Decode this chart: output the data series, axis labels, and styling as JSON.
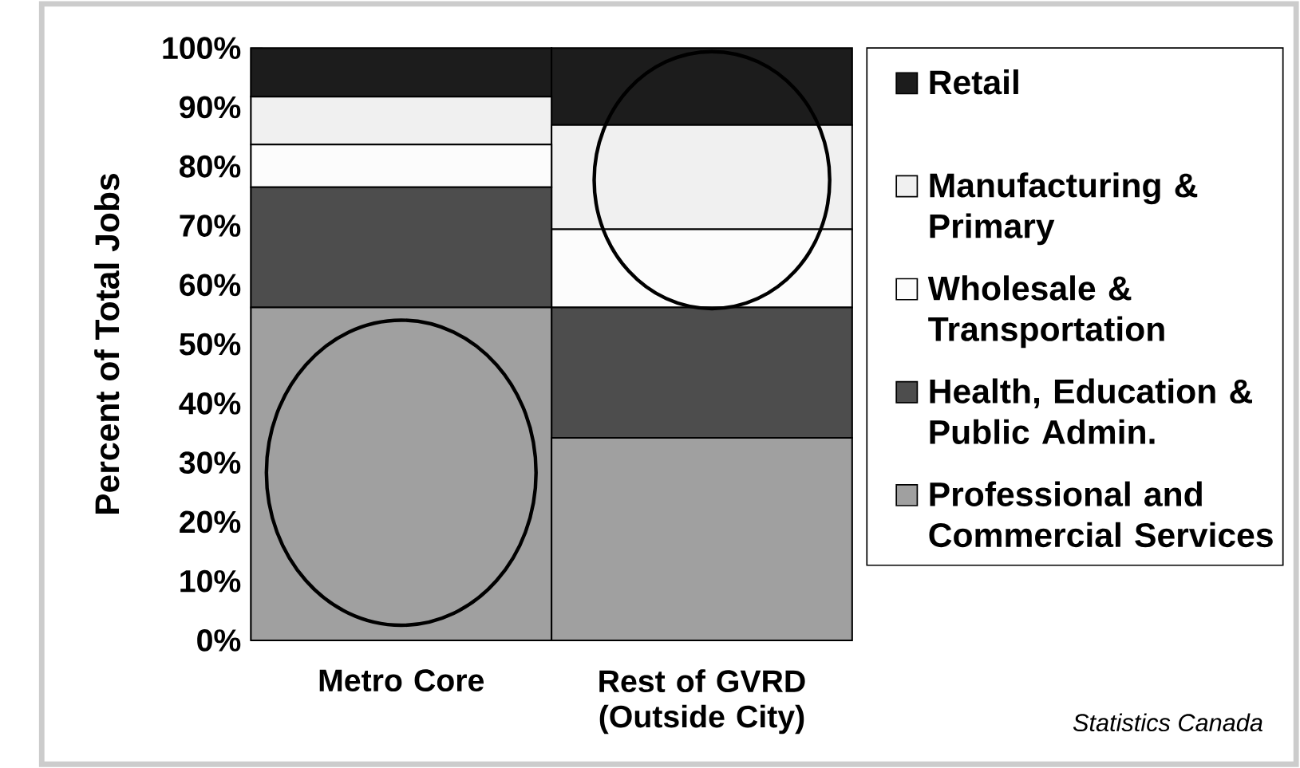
{
  "chart_data": {
    "type": "bar",
    "stacked": true,
    "ylabel": "Percent of Total Jobs",
    "categories": [
      "Metro Core",
      "Rest of GVRD (Outside City)"
    ],
    "series": [
      {
        "name": "Professional and Commercial Services",
        "color": "#a0a0a0",
        "values": [
          56.2,
          34.2
        ]
      },
      {
        "name": "Health, Education & Public Admin.",
        "color": "#4d4d4d",
        "values": [
          20.3,
          22
        ]
      },
      {
        "name": "Wholesale & Transportation",
        "color": "#fcfcfc",
        "values": [
          7.2,
          13.2
        ]
      },
      {
        "name": "Manufacturing & Primary",
        "color": "#f0f0f0",
        "values": [
          8.1,
          17.6
        ]
      },
      {
        "name": "Retail",
        "color": "#1c1c1c",
        "values": [
          8.2,
          13
        ]
      }
    ],
    "ylim": [
      0,
      100
    ],
    "yticks": [
      {
        "value": 0,
        "label": "0%"
      },
      {
        "value": 10,
        "label": "10%"
      },
      {
        "value": 20,
        "label": "20%"
      },
      {
        "value": 30,
        "label": "30%"
      },
      {
        "value": 40,
        "label": "40%"
      },
      {
        "value": 50,
        "label": "50%"
      },
      {
        "value": 60,
        "label": "60%"
      },
      {
        "value": 70,
        "label": "70%"
      },
      {
        "value": 80,
        "label": "80%"
      },
      {
        "value": 90,
        "label": "90%"
      },
      {
        "value": 100,
        "label": "100%"
      }
    ],
    "legend": "right",
    "grid": false,
    "annotations": [
      "Statistics Canada"
    ]
  }
}
